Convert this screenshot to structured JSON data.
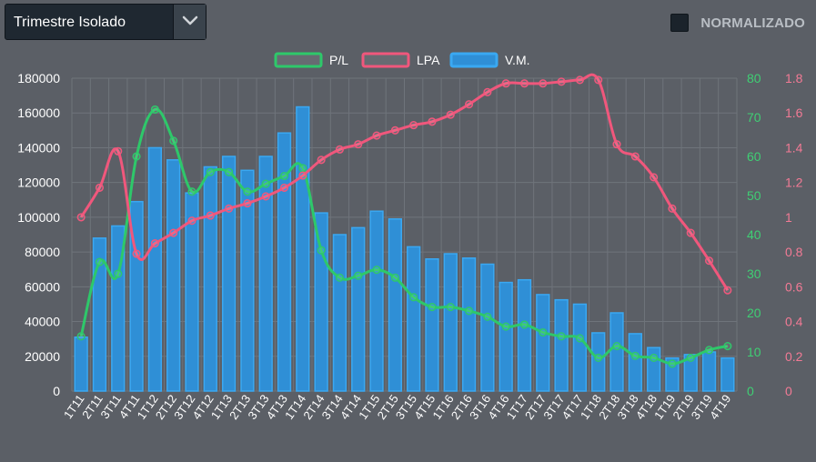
{
  "controls": {
    "period_select": {
      "value": "Trimestre Isolado",
      "icon": "chevron-down-icon"
    },
    "normalize": {
      "label": "NORMALIZADO",
      "checked": false
    }
  },
  "colors": {
    "background": "#5b5f66",
    "grid": "#6f747b",
    "bar_fill": "#2f8fd6",
    "bar_border": "#3aa8f2",
    "pl_line": "#2ec86a",
    "lpa_line": "#f0577c",
    "left_axis_text": "#ffffff",
    "right_green_text": "#3fcf74",
    "right_pink_text": "#f27a95"
  },
  "chart_data": {
    "type": "bar",
    "legend_position": "top-center",
    "grid": true,
    "categories": [
      "1T11",
      "2T11",
      "3T11",
      "4T11",
      "1T12",
      "2T12",
      "3T12",
      "4T12",
      "1T13",
      "2T13",
      "3T13",
      "4T13",
      "1T14",
      "2T14",
      "3T14",
      "4T14",
      "1T15",
      "2T15",
      "3T15",
      "4T15",
      "1T16",
      "2T16",
      "3T16",
      "4T16",
      "1T17",
      "2T17",
      "3T17",
      "4T17",
      "1T18",
      "2T18",
      "3T18",
      "4T18",
      "1T19",
      "2T19",
      "3T19",
      "4T19"
    ],
    "axes": {
      "y_left": {
        "min": 0,
        "max": 180000,
        "ticks": [
          "0",
          "20000",
          "40000",
          "60000",
          "80000",
          "100000",
          "120000",
          "140000",
          "160000",
          "180000"
        ]
      },
      "y_right_pl": {
        "min": 0,
        "max": 80,
        "ticks": [
          "0",
          "10",
          "20",
          "30",
          "40",
          "50",
          "60",
          "70",
          "80"
        ]
      },
      "y_right_lpa": {
        "min": 0,
        "max": 1.8,
        "ticks": [
          "0",
          "0.2",
          "0.4",
          "0.6",
          "0.8",
          "1",
          "1.2",
          "1.4",
          "1.6",
          "1.8"
        ]
      }
    },
    "series": [
      {
        "name": "V.M.",
        "kind": "bar",
        "axis": "y_left",
        "values": [
          31000,
          88000,
          95000,
          109000,
          140000,
          133000,
          114000,
          129000,
          135000,
          127000,
          135000,
          148500,
          163500,
          102500,
          90000,
          94000,
          103500,
          99000,
          83000,
          76000,
          79000,
          76500,
          73000,
          62500,
          64000,
          55500,
          52500,
          50000,
          33500,
          45000,
          33000,
          25000,
          19000,
          21000,
          22500,
          19000
        ]
      },
      {
        "name": "P/L",
        "kind": "line",
        "axis": "y_right_pl",
        "values": [
          14,
          33,
          30,
          60,
          72,
          64,
          51,
          56,
          56,
          51,
          53,
          55,
          57,
          36,
          29,
          29.5,
          31,
          29,
          24,
          21.5,
          21.5,
          20.5,
          19,
          16.5,
          17,
          15,
          14,
          13.5,
          8.5,
          11.5,
          9,
          8.5,
          7,
          8.5,
          10.5,
          11.5
        ]
      },
      {
        "name": "LPA",
        "kind": "line",
        "axis": "y_right_lpa",
        "values": [
          1.0,
          1.17,
          1.38,
          0.79,
          0.85,
          0.91,
          0.98,
          1.01,
          1.05,
          1.08,
          1.12,
          1.17,
          1.24,
          1.33,
          1.39,
          1.42,
          1.47,
          1.5,
          1.53,
          1.55,
          1.59,
          1.65,
          1.72,
          1.77,
          1.77,
          1.77,
          1.78,
          1.79,
          1.79,
          1.42,
          1.35,
          1.23,
          1.05,
          0.91,
          0.75,
          0.58
        ]
      }
    ]
  }
}
